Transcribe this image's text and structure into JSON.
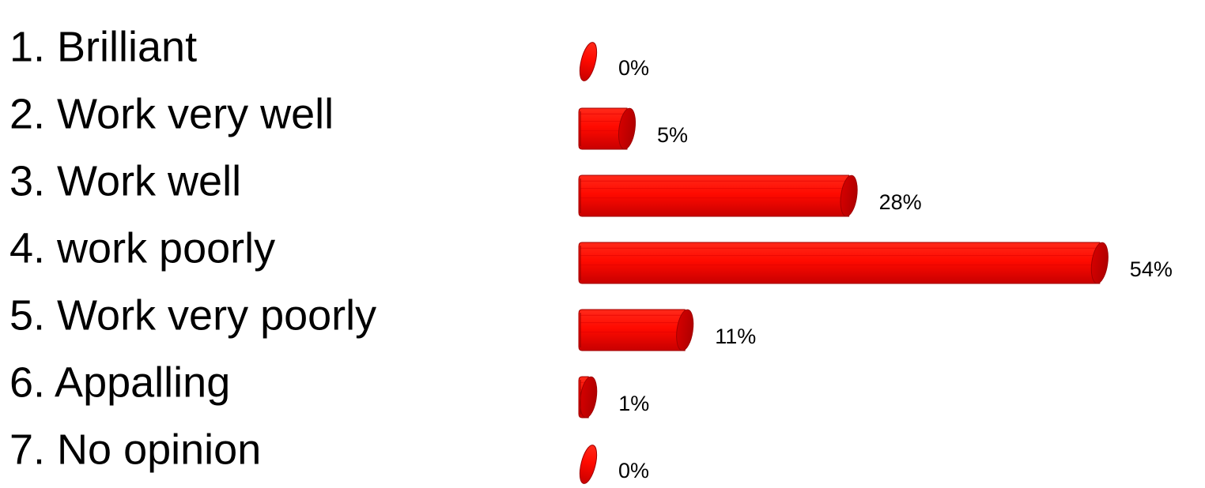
{
  "chart_data": {
    "type": "bar",
    "orientation": "horizontal",
    "categories": [
      "1. Brilliant",
      "2. Work very well",
      "3. Work well",
      "4. work poorly",
      "5. Work very poorly",
      "6. Appalling",
      "7. No opinion"
    ],
    "values": [
      0,
      5,
      28,
      54,
      11,
      1,
      0
    ],
    "value_labels": [
      "0%",
      "5%",
      "28%",
      "54%",
      "11%",
      "1%",
      "0%"
    ],
    "unit": "%",
    "bar_style": "3d-cylinder",
    "bar_color": "#ff0000",
    "grid": false,
    "legend": "none"
  }
}
